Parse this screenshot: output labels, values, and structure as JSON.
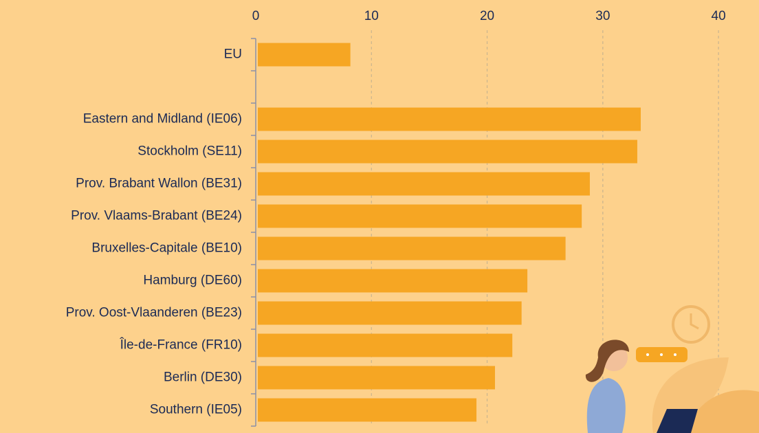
{
  "chart_data": {
    "type": "bar",
    "orientation": "horizontal",
    "categories": [
      "EU",
      null,
      "Eastern and Midland (IE06)",
      "Stockholm (SE11)",
      "Prov. Brabant Wallon (BE31)",
      "Prov. Vlaams-Brabant (BE24)",
      "Bruxelles-Capitale (BE10)",
      "Hamburg (DE60)",
      "Prov. Oost-Vlaanderen (BE23)",
      "Île-de-France (FR10)",
      "Berlin (DE30)",
      "Southern (IE05)"
    ],
    "values": [
      8.0,
      null,
      33.1,
      32.8,
      28.7,
      28.0,
      26.6,
      23.3,
      22.8,
      22.0,
      20.5,
      18.9
    ],
    "color": "#f6a623",
    "xlim": [
      0,
      43.5
    ],
    "xticks": [
      0,
      10,
      20,
      30,
      40
    ],
    "grid": true
  }
}
